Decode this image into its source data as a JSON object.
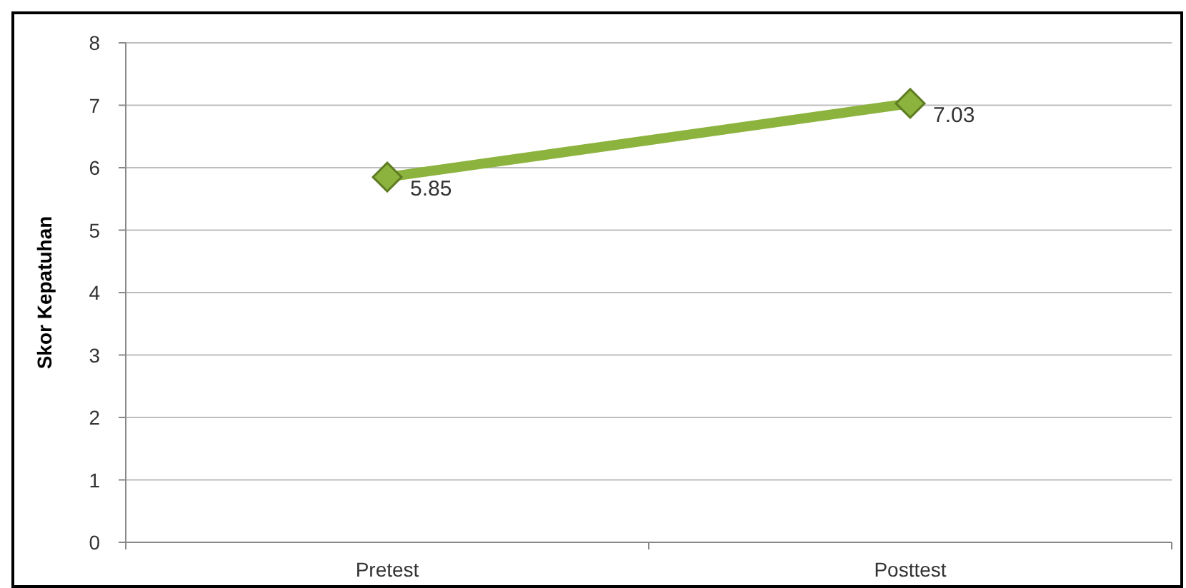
{
  "chart_data": {
    "type": "line",
    "ylabel": "Skor Kepatuhan",
    "categories": [
      "Pretest",
      "Posttest"
    ],
    "series": [
      {
        "color": "#8db33f",
        "values": [
          5.85,
          7.03
        ]
      }
    ],
    "ylim": [
      0,
      8
    ],
    "yticks": [
      0,
      1,
      2,
      3,
      4,
      5,
      6,
      7,
      8
    ],
    "grid": "y",
    "marker": "diamond",
    "line_style": "solid",
    "data_labels": true
  }
}
